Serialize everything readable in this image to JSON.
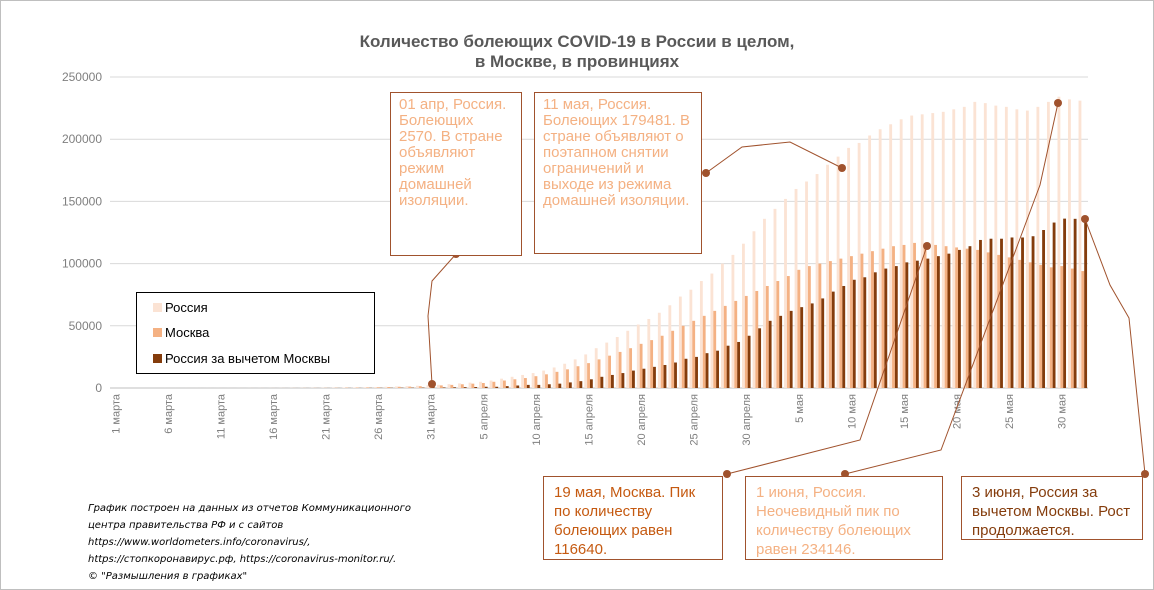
{
  "title_line1": "Количество болеющих COVID-19  в России в целом,",
  "title_line2": "в Москве,  в провинциях",
  "colors": {
    "russia": "#fbe3d4",
    "moscow": "#f4b183",
    "excl": "#843c0c",
    "grid": "#d9d9d9",
    "accent": "#a0522d"
  },
  "legend": {
    "russia": "Россия",
    "moscow": "Москва",
    "excl": "Россия за вычетом Москвы"
  },
  "annotations": {
    "a1": "01 апр, Россия. Болеющих 2570. В стране объявляют режим домашней изоляции.",
    "a2": "11 мая, Россия. Болеющих 179481. В стране объявляют о поэтапном снятии ограничений и выходе из режима домашней изоляции.",
    "a3": "19 мая, Москва. Пик по количеству болеющих равен 116640.",
    "a4": "1 июня, Россия. Неочевидный пик по количеству болеющих равен 234146.",
    "a5": "3 июня, Россия за вычетом Москвы. Рост продолжается."
  },
  "source": {
    "line1": "График построен на данных из отчетов  Коммуникационного",
    "line2": "центра правительства  РФ и с сайтов",
    "line3": "https://www.worldometers.info/coronavirus/,",
    "line4": "https://стопкоронавирус.рф,    https://coronavirus-monitor.ru/.",
    "line5": "© \"Размышления в графиках\""
  },
  "chart_data": {
    "type": "bar",
    "ylim": [
      0,
      250000
    ],
    "yticks": [
      "0",
      "50000",
      "100000",
      "150000",
      "200000",
      "250000"
    ],
    "xtick_labels": [
      "1 марта",
      "6 марта",
      "11 марта",
      "16 марта",
      "21 марта",
      "26 марта",
      "31 марта",
      "5 апреля",
      "10 апреля",
      "15 апреля",
      "20 апреля",
      "25 апреля",
      "30 апреля",
      "5 мая",
      "10 мая",
      "15 мая",
      "20 мая",
      "25 мая",
      "30 мая"
    ],
    "series": [
      {
        "name": "Россия",
        "values": [
          2,
          2,
          3,
          3,
          4,
          10,
          10,
          10,
          15,
          17,
          20,
          25,
          30,
          40,
          50,
          60,
          80,
          110,
          140,
          180,
          230,
          300,
          400,
          480,
          640,
          800,
          1000,
          1250,
          1450,
          1800,
          2200,
          2570,
          3100,
          3700,
          4300,
          5000,
          6000,
          7500,
          9000,
          10500,
          12000,
          14000,
          16500,
          19500,
          23000,
          27000,
          32000,
          36500,
          41000,
          46000,
          51000,
          55500,
          60500,
          66500,
          73500,
          79000,
          86000,
          92000,
          100000,
          107000,
          116000,
          126000,
          136000,
          144000,
          152000,
          160000,
          166000,
          172000,
          179481,
          186000,
          193000,
          197000,
          203000,
          208000,
          212000,
          216000,
          219000,
          220000,
          221000,
          222000,
          224000,
          226000,
          230000,
          229000,
          227000,
          226000,
          224000,
          223000,
          226000,
          230000,
          234146,
          232000,
          231000
        ]
      },
      {
        "name": "Москва",
        "values": [
          1,
          1,
          2,
          2,
          3,
          6,
          6,
          7,
          10,
          12,
          15,
          18,
          22,
          30,
          38,
          45,
          60,
          85,
          110,
          140,
          180,
          240,
          320,
          390,
          500,
          620,
          800,
          1000,
          1150,
          1450,
          1800,
          2100,
          2500,
          3000,
          3500,
          4000,
          5000,
          6000,
          7000,
          8000,
          9500,
          11000,
          13000,
          15000,
          17500,
          20000,
          23000,
          26000,
          29000,
          32000,
          35500,
          38500,
          42000,
          46000,
          50000,
          54000,
          58000,
          62000,
          66000,
          70000,
          74000,
          78000,
          82000,
          86000,
          90000,
          95000,
          98000,
          100000,
          102000,
          104000,
          106000,
          108000,
          110000,
          112000,
          114000,
          115000,
          116640,
          116000,
          115000,
          114000,
          113000,
          112000,
          111000,
          109000,
          107000,
          105000,
          103000,
          101000,
          99000,
          97000,
          98000,
          96000,
          94000
        ]
      },
      {
        "name": "Россия за вычетом Москвы",
        "values": [
          1,
          1,
          1,
          1,
          1,
          4,
          4,
          3,
          5,
          5,
          5,
          7,
          8,
          10,
          12,
          15,
          20,
          25,
          30,
          40,
          50,
          60,
          80,
          90,
          140,
          180,
          200,
          250,
          300,
          350,
          400,
          470,
          600,
          700,
          800,
          1000,
          1000,
          1500,
          2000,
          2500,
          2500,
          3000,
          3500,
          4500,
          5500,
          7000,
          9000,
          10500,
          12000,
          14000,
          15500,
          17000,
          18500,
          20500,
          23500,
          25000,
          28000,
          30000,
          34000,
          37000,
          42000,
          48000,
          54000,
          58000,
          62000,
          65000,
          68000,
          72000,
          77481,
          82000,
          87000,
          89000,
          93000,
          96000,
          98000,
          101000,
          102360,
          104000,
          106000,
          108000,
          111000,
          114000,
          119000,
          120000,
          120000,
          121000,
          121000,
          122000,
          127000,
          133000,
          136146,
          136000,
          137000
        ]
      }
    ]
  }
}
